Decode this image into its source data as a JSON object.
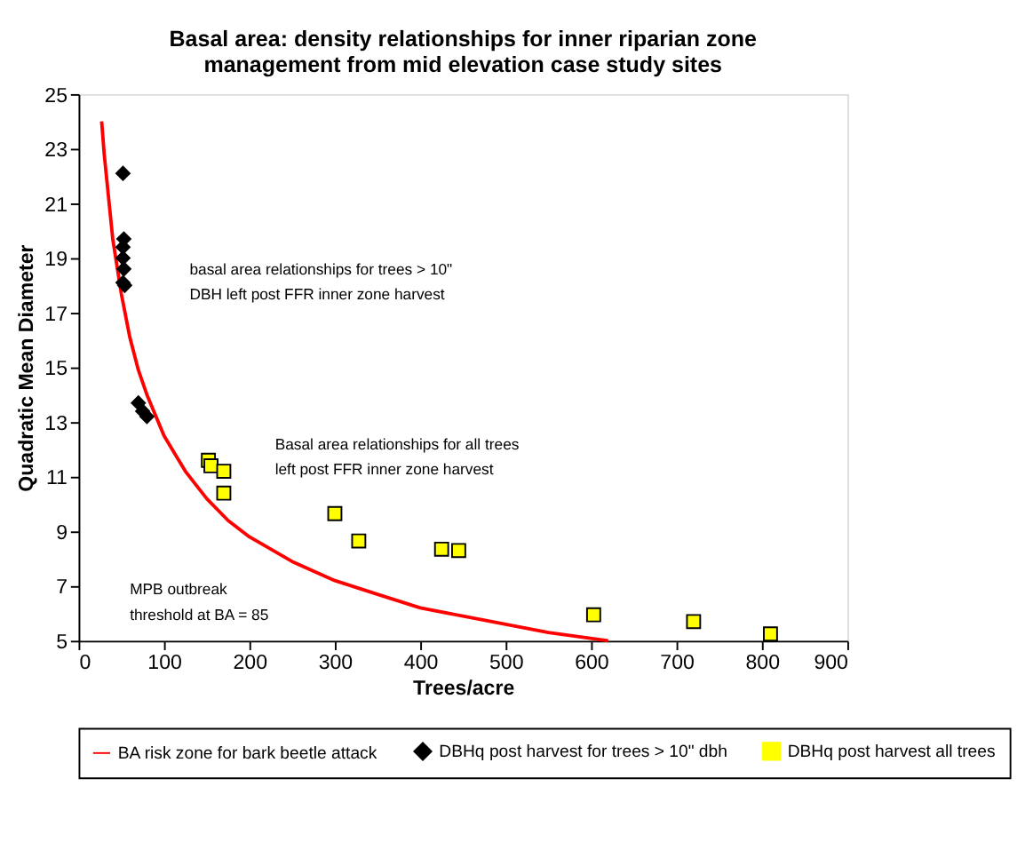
{
  "chart_data": {
    "type": "scatter",
    "title": "Basal area: density relationships for inner riparian zone\nmanagement from mid elevation case study sites",
    "xlabel": "Trees/acre",
    "ylabel": "Quadratic Mean Diameter",
    "xlim": [
      0,
      900
    ],
    "xticks": [
      0,
      100,
      200,
      300,
      400,
      500,
      600,
      700,
      800,
      900
    ],
    "ylim": [
      5,
      25
    ],
    "yticks": [
      5,
      7,
      9,
      11,
      13,
      15,
      17,
      19,
      21,
      23,
      25
    ],
    "grid": false,
    "legend": "bottom",
    "series": [
      {
        "name": "BA risk zone for bark beetle attack",
        "type": "line",
        "color": "#ff0000",
        "marker": "none",
        "line_style": "solid",
        "x": [
          27,
          30,
          40,
          50,
          60,
          70,
          80,
          100,
          125,
          150,
          175,
          200,
          250,
          300,
          350,
          400,
          450,
          500,
          550,
          620
        ],
        "values": [
          24.0,
          22.8,
          19.7,
          17.7,
          16.1,
          14.9,
          14.0,
          12.5,
          11.2,
          10.2,
          9.4,
          8.8,
          7.9,
          7.2,
          6.7,
          6.2,
          5.9,
          5.6,
          5.3,
          5.0
        ]
      },
      {
        "name": "DBHq post harvest for trees > 10\" dbh",
        "color": "#000000",
        "marker": "diamond",
        "x": [
          52,
          53,
          52,
          52,
          53,
          52,
          54,
          70,
          75,
          80
        ],
        "values": [
          22.1,
          19.7,
          19.4,
          19.0,
          18.6,
          18.1,
          18.0,
          13.7,
          13.4,
          13.2
        ]
      },
      {
        "name": "DBHq post harvest all trees",
        "color": "#ffff00",
        "marker": "square",
        "x": [
          152,
          155,
          170,
          170,
          300,
          328,
          425,
          445,
          603,
          720,
          810
        ],
        "values": [
          11.6,
          11.4,
          11.2,
          10.4,
          9.65,
          8.65,
          8.35,
          8.3,
          5.95,
          5.7,
          5.25
        ]
      }
    ],
    "annotations": [
      "basal area relationships for trees > 10\"\nDBH left post FFR inner zone harvest",
      "Basal area relationships for all trees\nleft post FFR inner zone harvest",
      "MPB outbreak\nthreshold at BA = 85"
    ]
  }
}
